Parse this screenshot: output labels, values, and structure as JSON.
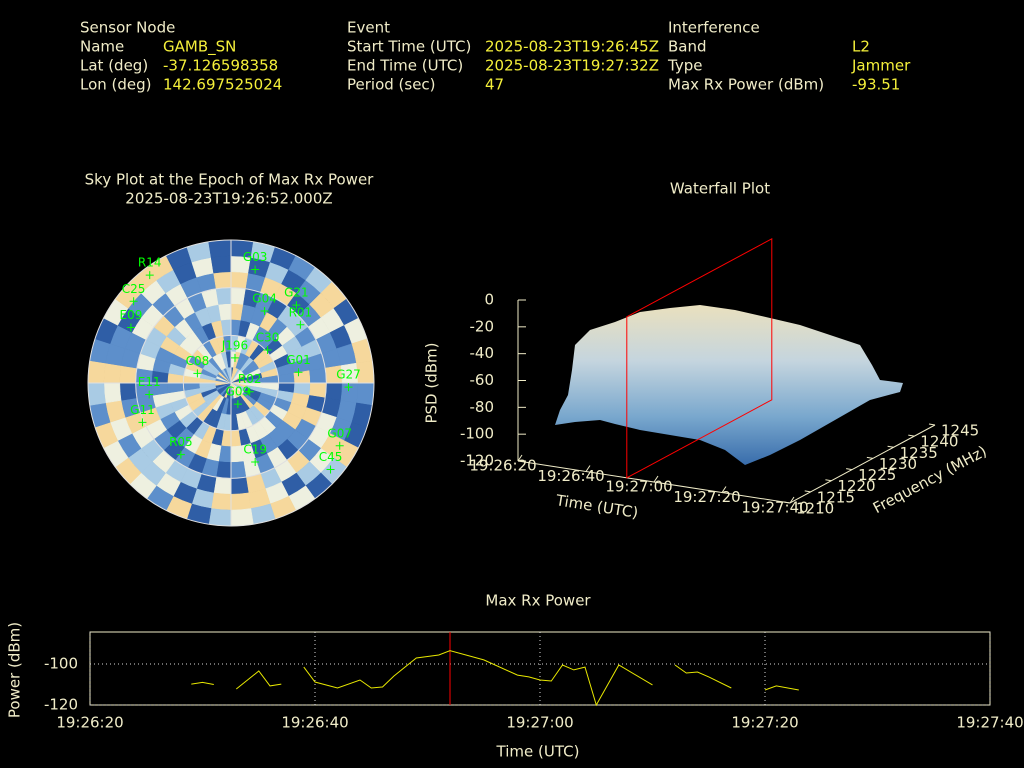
{
  "info": {
    "sensor_node": {
      "title": "Sensor Node",
      "rows": [
        [
          "Name",
          "GAMB_SN"
        ],
        [
          "Lat (deg)",
          "-37.126598358"
        ],
        [
          "Lon (deg)",
          "142.697525024"
        ]
      ]
    },
    "event": {
      "title": "Event",
      "rows": [
        [
          "Start Time (UTC)",
          "2025-08-23T19:26:45Z"
        ],
        [
          "End Time (UTC)",
          "2025-08-23T19:27:32Z"
        ],
        [
          "Period (sec)",
          "47"
        ]
      ]
    },
    "interference": {
      "title": "Interference",
      "rows": [
        [
          "Band",
          "L2"
        ],
        [
          "Type",
          "Jammer"
        ],
        [
          "Max Rx Power (dBm)",
          "-93.51"
        ]
      ]
    }
  },
  "chart_data": [
    {
      "type": "polar",
      "title": "Sky Plot at the Epoch of Max Rx Power",
      "subtitle": "2025-08-23T19:26:52.000Z",
      "rlim": [
        90,
        0
      ],
      "rticks": [
        60,
        30,
        0
      ],
      "azimuth_lines": [
        0,
        90,
        180,
        270
      ],
      "color": "#00ff00",
      "satellites": [
        {
          "name": "R14",
          "azimuth": 323,
          "elevation": 5
        },
        {
          "name": "G03",
          "azimuth": 12,
          "elevation": 17
        },
        {
          "name": "G21",
          "azimuth": 40,
          "elevation": 26
        },
        {
          "name": "R01",
          "azimuth": 50,
          "elevation": 33
        },
        {
          "name": "G04",
          "azimuth": 25,
          "elevation": 40
        },
        {
          "name": "C30",
          "azimuth": 48,
          "elevation": 59
        },
        {
          "name": "G27",
          "azimuth": 92,
          "elevation": 16
        },
        {
          "name": "G07",
          "azimuth": 120,
          "elevation": 11
        },
        {
          "name": "C45",
          "azimuth": 131,
          "elevation": 7
        },
        {
          "name": "C19",
          "azimuth": 163,
          "elevation": 38
        },
        {
          "name": "R02",
          "azimuth": 115,
          "elevation": 77
        },
        {
          "name": "E11",
          "azimuth": 262,
          "elevation": 38
        },
        {
          "name": "G11",
          "azimuth": 246,
          "elevation": 29
        },
        {
          "name": "R05",
          "azimuth": 215,
          "elevation": 35
        },
        {
          "name": "E09",
          "azimuth": 299,
          "elevation": 18
        },
        {
          "name": "C25",
          "azimuth": 310,
          "elevation": 10
        },
        {
          "name": "C08",
          "azimuth": 286,
          "elevation": 68
        },
        {
          "name": "J196",
          "azimuth": 9,
          "elevation": 74
        },
        {
          "name": "G01",
          "azimuth": 81,
          "elevation": 47
        },
        {
          "name": "G09",
          "azimuth": 162,
          "elevation": 76
        }
      ]
    },
    {
      "type": "surface",
      "title": "Waterfall Plot",
      "x_label": "Time (UTC)",
      "y_label": "Frequency (MHz)",
      "z_label": "PSD (dBm)",
      "xlim": [
        "19:26:20",
        "19:27:40"
      ],
      "xticks": [
        "19:26:20",
        "19:26:40",
        "19:27:00",
        "19:27:20",
        "19:27:40"
      ],
      "ylim": [
        1210,
        1245
      ],
      "yticks": [
        1210,
        1215,
        1220,
        1225,
        1230,
        1235,
        1240,
        1245
      ],
      "zlim": [
        -120,
        0
      ],
      "zticks": [
        0,
        -20,
        -40,
        -60,
        -80,
        -100,
        -120
      ],
      "marker_x": "19:26:52",
      "marker_color": "#ff0000"
    },
    {
      "type": "line",
      "title": "Max Rx Power",
      "x_label": "Time (UTC)",
      "y_label": "Power (dBm)",
      "x": [
        "19:26:29",
        "19:26:30",
        "19:26:31",
        "19:26:32",
        "19:26:33",
        "19:26:35",
        "19:26:36",
        "19:26:37",
        "19:26:38",
        "19:26:39",
        "19:26:40",
        "19:26:42",
        "19:26:44",
        "19:26:45",
        "19:26:46",
        "19:26:47",
        "19:26:49",
        "19:26:51",
        "19:26:52",
        "19:26:55",
        "19:26:58",
        "19:26:59",
        "19:27:00",
        "19:27:01",
        "19:27:02",
        "19:27:03",
        "19:27:04",
        "19:27:05",
        "19:27:07",
        "19:27:10",
        "19:27:11",
        "19:27:12",
        "19:27:13",
        "19:27:14",
        "19:27:15",
        "19:27:17",
        "19:27:18",
        "19:27:20",
        "19:27:21",
        "19:27:23"
      ],
      "series": [
        {
          "color": "#e8e800",
          "values": [
            -109.8,
            -109,
            -110,
            null,
            -112.2,
            -103.4,
            -110.7,
            -109.8,
            null,
            -101.5,
            -108.8,
            -111.7,
            -107.8,
            -111.7,
            -111.2,
            -105.9,
            -97.1,
            -95.6,
            -93.5,
            -98.0,
            -105.4,
            -106.3,
            -107.8,
            -108.3,
            -100.5,
            -102.9,
            -101.5,
            -120,
            -100.5,
            -110.2,
            null,
            -100.5,
            -104.4,
            -103.9,
            -106.3,
            -111.7,
            null,
            -112.7,
            -110.7,
            -112.7
          ]
        }
      ],
      "xlim": [
        "19:26:20",
        "19:27:40"
      ],
      "xticks": [
        "19:26:20",
        "19:26:40",
        "19:27:00",
        "19:27:20",
        "19:27:40"
      ],
      "ylim": [
        -120,
        -84.4
      ],
      "yticks": [
        -100,
        -120
      ],
      "grid": true,
      "marker_x": "19:26:52",
      "marker_color": "#ff0000"
    }
  ]
}
